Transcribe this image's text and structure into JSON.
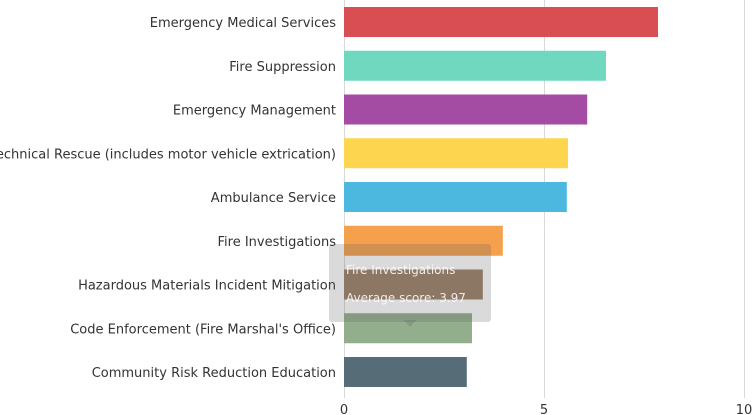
{
  "chart_data": {
    "type": "bar",
    "orientation": "horizontal",
    "title": "",
    "xlabel": "",
    "ylabel": "",
    "xlim": [
      0,
      10
    ],
    "ticks": [
      "0",
      "5",
      "10"
    ],
    "grid": true,
    "categories": [
      "Emergency Medical Services",
      "Fire Suppression",
      "Emergency Management",
      "Technical Rescue (includes motor vehicle extrication)",
      "Ambulance Service",
      "Fire Investigations",
      "Hazardous Materials Incident Mitigation",
      "Code Enforcement (Fire Marshal's Office)",
      "Community Risk Reduction Education"
    ],
    "values": [
      7.85,
      6.55,
      6.08,
      5.6,
      5.57,
      3.97,
      3.47,
      3.2,
      3.07
    ],
    "colors": [
      "#d94e52",
      "#6fd8bf",
      "#a44ca4",
      "#fdd54f",
      "#4cb8e0",
      "#f4a04d",
      "#9b806a",
      "#93ae8c",
      "#566d77"
    ]
  },
  "tooltip": {
    "title": "Fire Investigations",
    "score_text": "Average score: 3.97"
  }
}
